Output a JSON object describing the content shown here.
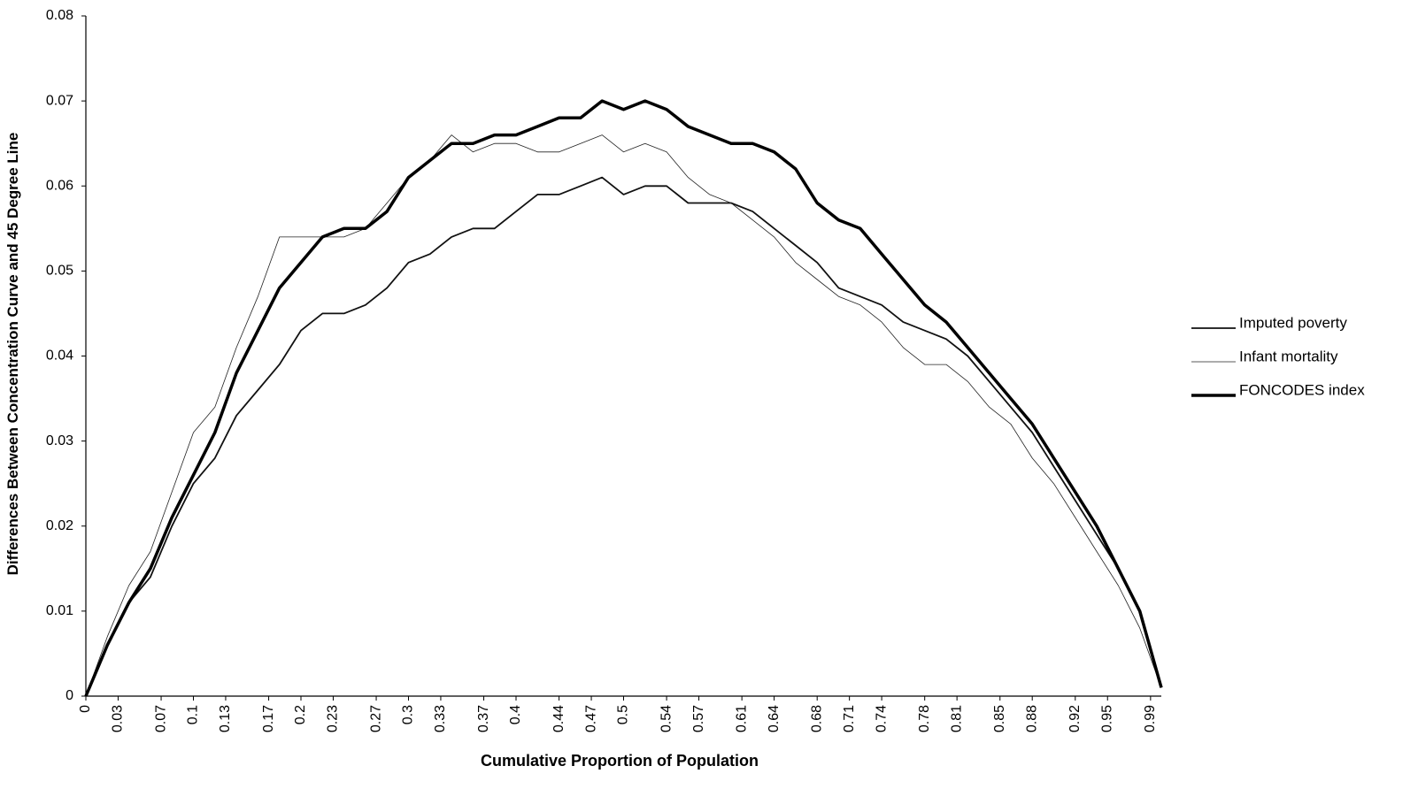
{
  "chart_data": {
    "type": "line",
    "x_label": "Cumulative Proportion of Population",
    "y_label": "Differences Between Concentration Curve and 45 Degree Line",
    "x": [
      0,
      0.02,
      0.04,
      0.06,
      0.08,
      0.1,
      0.12,
      0.14,
      0.16,
      0.18,
      0.2,
      0.22,
      0.24,
      0.26,
      0.28,
      0.3,
      0.32,
      0.34,
      0.36,
      0.38,
      0.4,
      0.42,
      0.44,
      0.46,
      0.48,
      0.5,
      0.52,
      0.54,
      0.56,
      0.58,
      0.6,
      0.62,
      0.64,
      0.66,
      0.68,
      0.7,
      0.72,
      0.74,
      0.76,
      0.78,
      0.8,
      0.82,
      0.84,
      0.86,
      0.88,
      0.9,
      0.92,
      0.94,
      0.96,
      0.98,
      1
    ],
    "series": [
      {
        "name": "Imputed poverty",
        "color": "#111111",
        "line_width": 1.8,
        "values": [
          0,
          0.006,
          0.011,
          0.014,
          0.02,
          0.025,
          0.028,
          0.033,
          0.036,
          0.039,
          0.043,
          0.045,
          0.045,
          0.046,
          0.048,
          0.051,
          0.052,
          0.054,
          0.055,
          0.055,
          0.057,
          0.059,
          0.059,
          0.06,
          0.061,
          0.059,
          0.06,
          0.06,
          0.058,
          0.058,
          0.058,
          0.057,
          0.055,
          0.053,
          0.051,
          0.048,
          0.047,
          0.046,
          0.044,
          0.043,
          0.042,
          0.04,
          0.037,
          0.034,
          0.031,
          0.027,
          0.023,
          0.019,
          0.015,
          0.01,
          0.001
        ]
      },
      {
        "name": "Infant mortality",
        "color": "#222222",
        "line_width": 0.8,
        "values": [
          0,
          0.007,
          0.013,
          0.017,
          0.024,
          0.031,
          0.034,
          0.041,
          0.047,
          0.054,
          0.054,
          0.054,
          0.054,
          0.055,
          0.058,
          0.061,
          0.063,
          0.066,
          0.064,
          0.065,
          0.065,
          0.064,
          0.064,
          0.065,
          0.066,
          0.064,
          0.065,
          0.064,
          0.061,
          0.059,
          0.058,
          0.056,
          0.054,
          0.051,
          0.049,
          0.047,
          0.046,
          0.044,
          0.041,
          0.039,
          0.039,
          0.037,
          0.034,
          0.032,
          0.028,
          0.025,
          0.021,
          0.017,
          0.013,
          0.008,
          0.001
        ]
      },
      {
        "name": "FONCODES index",
        "color": "#000000",
        "line_width": 3.5,
        "values": [
          0,
          0.006,
          0.011,
          0.015,
          0.021,
          0.026,
          0.031,
          0.038,
          0.043,
          0.048,
          0.051,
          0.054,
          0.055,
          0.055,
          0.057,
          0.061,
          0.063,
          0.065,
          0.065,
          0.066,
          0.066,
          0.067,
          0.068,
          0.068,
          0.07,
          0.069,
          0.07,
          0.069,
          0.067,
          0.066,
          0.065,
          0.065,
          0.064,
          0.062,
          0.058,
          0.056,
          0.055,
          0.052,
          0.049,
          0.046,
          0.044,
          0.041,
          0.038,
          0.035,
          0.032,
          0.028,
          0.024,
          0.02,
          0.015,
          0.01,
          0.001
        ]
      }
    ],
    "xlim": [
      0,
      1
    ],
    "xticks": [
      0,
      0.03,
      0.07,
      0.1,
      0.13,
      0.17,
      0.2,
      0.23,
      0.27,
      0.3,
      0.33,
      0.37,
      0.4,
      0.44,
      0.47,
      0.5,
      0.54,
      0.57,
      0.61,
      0.64,
      0.68,
      0.71,
      0.74,
      0.78,
      0.81,
      0.85,
      0.88,
      0.92,
      0.95,
      0.99
    ],
    "ylim": [
      0,
      0.08
    ],
    "yticks": [
      0,
      0.01,
      0.02,
      0.03,
      0.04,
      0.05,
      0.06,
      0.07,
      0.08
    ],
    "grid": false,
    "legend": "right"
  }
}
